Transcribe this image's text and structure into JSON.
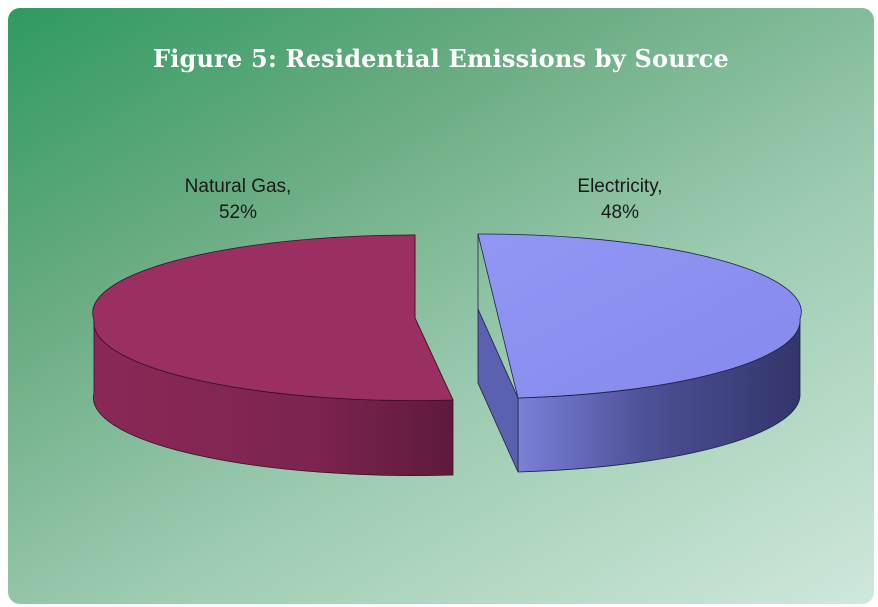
{
  "chart_data": {
    "type": "pie",
    "title": "Figure 5: Residential Emissions by Source",
    "slices": [
      {
        "name": "Natural Gas",
        "label": "Natural Gas,",
        "value": 52,
        "value_label": "52%",
        "color": "#8e2a5a"
      },
      {
        "name": "Electricity",
        "label": "Electricity,",
        "value": 48,
        "value_label": "48%",
        "color": "#8b8ff0"
      }
    ],
    "style": "3d-exploded"
  },
  "colors": {
    "background_dark": "#2f9a61",
    "background_light": "#cfe8dc",
    "title_text": "#ffffff"
  }
}
